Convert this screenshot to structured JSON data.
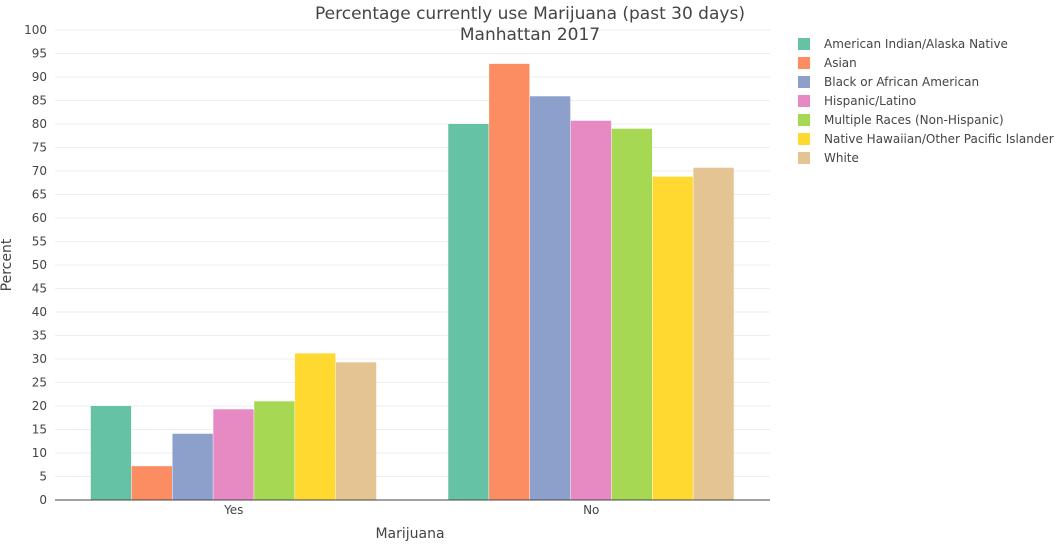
{
  "chart_data": {
    "type": "bar",
    "title": "Percentage currently use Marijuana (past 30 days)",
    "subtitle": "Manhattan 2017",
    "xlabel": "Marijuana",
    "ylabel": "Percent",
    "ylim": [
      0,
      100
    ],
    "ytick_step": 5,
    "grid": true,
    "legend_position": "right",
    "categories": [
      "Yes",
      "No"
    ],
    "series": [
      {
        "name": "American Indian/Alaska Native",
        "color": "#66c2a5",
        "values": [
          20.0,
          80.0
        ]
      },
      {
        "name": "Asian",
        "color": "#fc8d62",
        "values": [
          7.2,
          92.8
        ]
      },
      {
        "name": "Black or African American",
        "color": "#8da0cb",
        "values": [
          14.1,
          85.9
        ]
      },
      {
        "name": "Hispanic/Latino",
        "color": "#e78ac3",
        "values": [
          19.3,
          80.7
        ]
      },
      {
        "name": "Multiple Races (Non-Hispanic)",
        "color": "#a6d854",
        "values": [
          21.0,
          79.0
        ]
      },
      {
        "name": "Native Hawaiian/Other Pacific Islander",
        "color": "#ffd92f",
        "values": [
          31.2,
          68.8
        ]
      },
      {
        "name": "White",
        "color": "#e5c494",
        "values": [
          29.3,
          70.7
        ]
      }
    ]
  }
}
